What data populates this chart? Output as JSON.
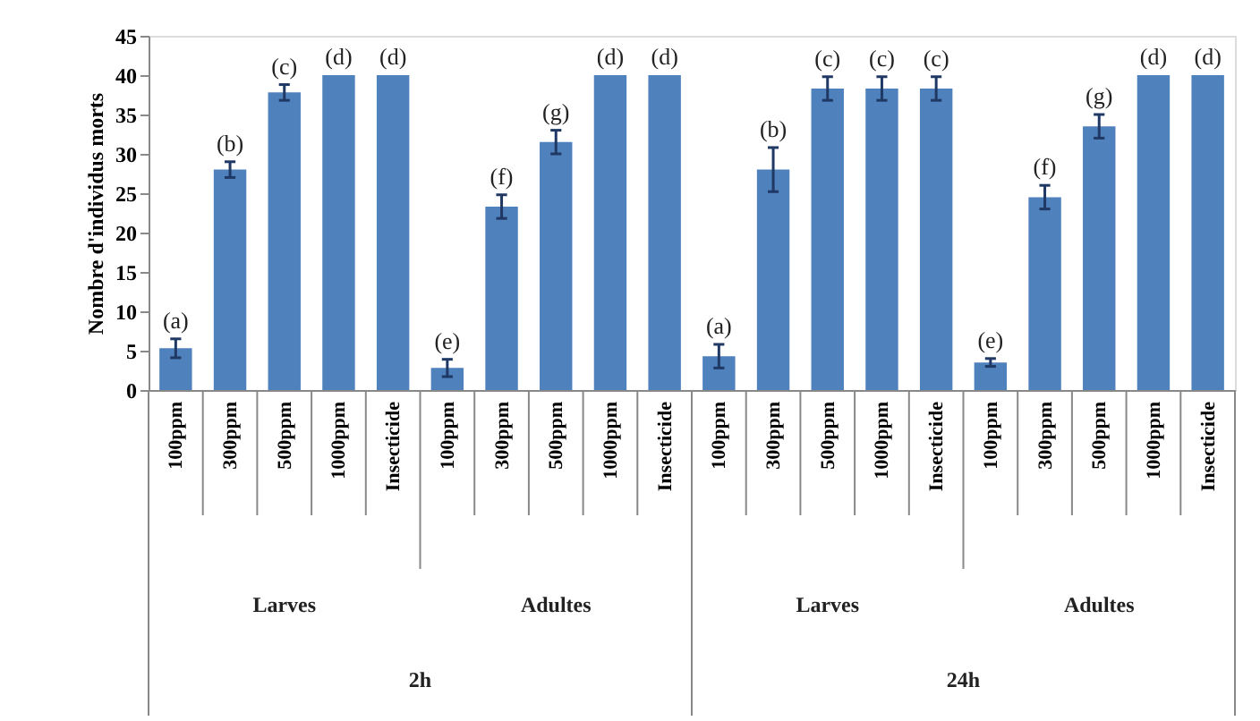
{
  "chart_data": {
    "type": "bar",
    "ylabel": "Nombre d'individus morts",
    "categories": [
      "100ppm",
      "300ppm",
      "500ppm",
      "1000ppm",
      "Insecticide",
      "100ppm",
      "300ppm",
      "500ppm",
      "1000ppm",
      "Insecticide",
      "100ppm",
      "300ppm",
      "500ppm",
      "1000ppm",
      "Insecticide",
      "100ppm",
      "300ppm",
      "500ppm",
      "1000ppm",
      "Insecticide"
    ],
    "values": [
      5.3,
      28,
      37.8,
      40,
      40,
      2.8,
      23.3,
      31.5,
      40,
      40,
      4.3,
      28,
      38.3,
      38.3,
      38.3,
      3.5,
      24.5,
      33.5,
      40,
      40
    ],
    "errors": [
      1.2,
      1,
      1,
      null,
      null,
      1.1,
      1.5,
      1.5,
      null,
      null,
      1.5,
      2.8,
      1.5,
      1.5,
      1.5,
      0.5,
      1.5,
      1.5,
      null,
      null
    ],
    "value_labels": [
      "(a)",
      "(b)",
      "(c)",
      "(d)",
      "(d)",
      "(e)",
      "(f)",
      "(g)",
      "(d)",
      "(d)",
      "(a)",
      "(b)",
      "(c)",
      "(c)",
      "(c)",
      "(e)",
      "(f)",
      "(g)",
      "(d)",
      "(d)"
    ],
    "color": "#4f81bd",
    "annotations": [
      "Larves",
      "Adultes",
      "Larves",
      "Adultes",
      "2h",
      "24h"
    ],
    "ylim": [
      0,
      45
    ],
    "yticks": [
      0,
      5,
      10,
      15,
      20,
      25,
      30,
      35,
      40,
      45
    ],
    "grid": false
  }
}
